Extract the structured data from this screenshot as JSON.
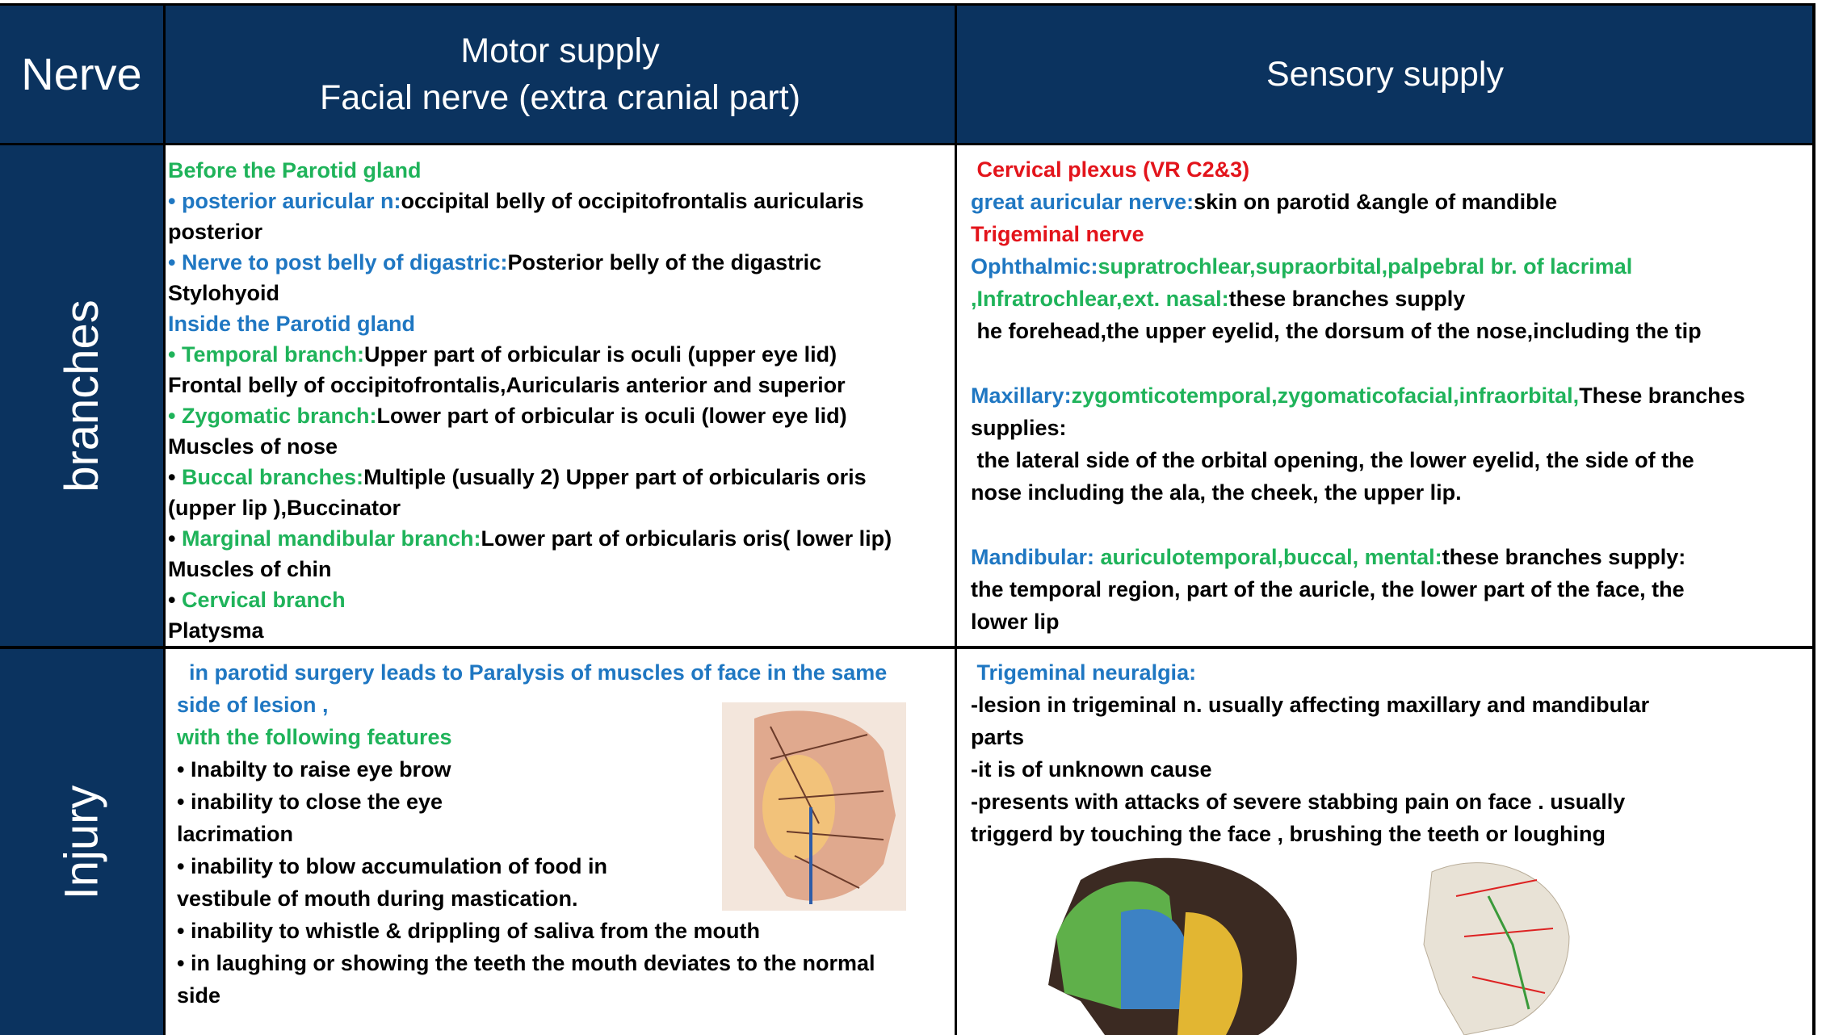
{
  "table": {
    "header": {
      "nerve": "Nerve",
      "motor": [
        "Motor supply",
        "Facial nerve (extra cranial part)"
      ],
      "sensory": "Sensory supply"
    },
    "rows": [
      {
        "label": "branches",
        "motor": [
          [
            [
              {
                "text": "Before the Parotid gland",
                "color": "#1fb35a"
              }
            ],
            [
              {
                "text": "• posterior auricular n:",
                "color": "#1f77c2"
              },
              {
                "text": "occipital belly of occipitofrontalis auricularis",
                "color": "#000000"
              }
            ],
            [
              {
                "text": "posterior",
                "color": "#000000"
              }
            ],
            [
              {
                "text": "• Nerve to post belly of digastric:",
                "color": "#1f77c2"
              },
              {
                "text": "Posterior belly of the digastric",
                "color": "#000000"
              }
            ],
            [
              {
                "text": "Stylohyoid",
                "color": "#000000"
              }
            ],
            [
              {
                "text": "Inside the Parotid gland",
                "color": "#1f77c2"
              }
            ],
            [
              {
                "text": "• Temporal branch:",
                "color": "#1fb35a"
              },
              {
                "text": "Upper part of orbicular is oculi (upper eye lid)",
                "color": "#000000"
              }
            ],
            [
              {
                "text": "Frontal belly of occipitofrontalis,Auricularis anterior and superior",
                "color": "#000000"
              }
            ],
            [
              {
                "text": "• Zygomatic branch:",
                "color": "#1fb35a"
              },
              {
                "text": "Lower part of orbicular is oculi (lower eye lid)",
                "color": "#000000"
              }
            ],
            [
              {
                "text": "Muscles of nose",
                "color": "#000000"
              }
            ],
            [
              {
                "text": "• ",
                "color": "#000000"
              },
              {
                "text": "Buccal branches:",
                "color": "#1fb35a"
              },
              {
                "text": "Multiple (usually 2) Upper part of orbicularis oris",
                "color": "#000000"
              }
            ],
            [
              {
                "text": "(upper lip ),Buccinator",
                "color": "#000000"
              }
            ],
            [
              {
                "text": "• ",
                "color": "#000000"
              },
              {
                "text": "Marginal mandibular branch:",
                "color": "#1fb35a"
              },
              {
                "text": "Lower part of orbicularis oris( lower lip)",
                "color": "#000000"
              }
            ],
            [
              {
                "text": "Muscles of chin",
                "color": "#000000"
              }
            ],
            [
              {
                "text": "• ",
                "color": "#000000"
              },
              {
                "text": "Cervical branch",
                "color": "#1fb35a"
              }
            ],
            [
              {
                "text": "Platysma",
                "color": "#000000"
              }
            ]
          ]
        ],
        "sensory": [
          [
            [
              {
                "text": " Cervical plexus (VR C2&3)",
                "color": "#e3141b"
              }
            ],
            [
              {
                "text": "great auricular nerve:",
                "color": "#1f77c2"
              },
              {
                "text": "skin on parotid &angle of mandible",
                "color": "#000000"
              }
            ],
            [
              {
                "text": "Trigeminal nerve",
                "color": "#e3141b"
              }
            ],
            [
              {
                "text": "Ophthalmic:",
                "color": "#1f77c2"
              },
              {
                "text": "supratrochlear,supraorbital,palpebral br. of lacrimal",
                "color": "#1fb35a"
              }
            ],
            [
              {
                "text": ",Infratrochlear,ext. nasal:",
                "color": "#1fb35a"
              },
              {
                "text": "these branches supply",
                "color": "#000000"
              }
            ],
            [
              {
                "text": " he forehead,the upper eyelid, the dorsum of the nose,including the tip",
                "color": "#000000"
              }
            ]
          ],
          [
            [
              {
                "text": "Maxillary:",
                "color": "#1f77c2"
              },
              {
                "text": "zygomticotemporal,zygomaticofacial,infraorbital,",
                "color": "#1fb35a"
              },
              {
                "text": "These branches",
                "color": "#000000"
              }
            ],
            [
              {
                "text": "supplies:",
                "color": "#000000"
              }
            ],
            [
              {
                "text": " the lateral side of the orbital opening, the lower eyelid, the side of the",
                "color": "#000000"
              }
            ],
            [
              {
                "text": "nose including the ala, the cheek, the upper lip.",
                "color": "#000000"
              }
            ]
          ],
          [
            [
              {
                "text": "Mandibular: ",
                "color": "#1f77c2"
              },
              {
                "text": "auriculotemporal,buccal, mental:",
                "color": "#1fb35a"
              },
              {
                "text": "these branches supply:",
                "color": "#000000"
              }
            ],
            [
              {
                "text": "the temporal region, part of the auricle, the lower part of the face, the",
                "color": "#000000"
              }
            ],
            [
              {
                "text": "lower lip",
                "color": "#000000"
              }
            ]
          ]
        ]
      },
      {
        "label": "Injury",
        "motor": [
          [
            [
              {
                "text": "  in parotid surgery leads to Paralysis of muscles of face in the same",
                "color": "#1f77c2"
              }
            ],
            [
              {
                "text": "side of lesion ,",
                "color": "#1f77c2"
              }
            ],
            [
              {
                "text": "with the following features",
                "color": "#1fb35a"
              }
            ],
            [
              {
                "text": "• Inabilty to raise eye brow",
                "color": "#000000"
              }
            ],
            [
              {
                "text": "• inability to close the eye",
                "color": "#000000"
              }
            ],
            [
              {
                "text": "lacrimation",
                "color": "#000000"
              }
            ],
            [
              {
                "text": "• inability to blow accumulation of food in",
                "color": "#000000"
              }
            ],
            [
              {
                "text": "vestibule of mouth during mastication.",
                "color": "#000000"
              }
            ],
            [
              {
                "text": "• inability to whistle & drippling of saliva from the mouth",
                "color": "#000000"
              }
            ],
            [
              {
                "text": "• in laughing or showing the teeth the mouth deviates to the normal",
                "color": "#000000"
              }
            ],
            [
              {
                "text": "side",
                "color": "#000000"
              }
            ]
          ]
        ],
        "sensory": [
          [
            [
              {
                "text": " Trigeminal neuralgia:",
                "color": "#1f77c2"
              }
            ],
            [
              {
                "text": "-lesion in trigeminal n. usually affecting maxillary and mandibular",
                "color": "#000000"
              }
            ],
            [
              {
                "text": "parts",
                "color": "#000000"
              }
            ],
            [
              {
                "text": "-it is of unknown cause",
                "color": "#000000"
              }
            ],
            [
              {
                "text": "-presents with attacks of severe stabbing pain on face . usually",
                "color": "#000000"
              }
            ],
            [
              {
                "text": "triggerd by touching the face , brushing the teeth or loughing",
                "color": "#000000"
              }
            ]
          ]
        ]
      }
    ]
  }
}
